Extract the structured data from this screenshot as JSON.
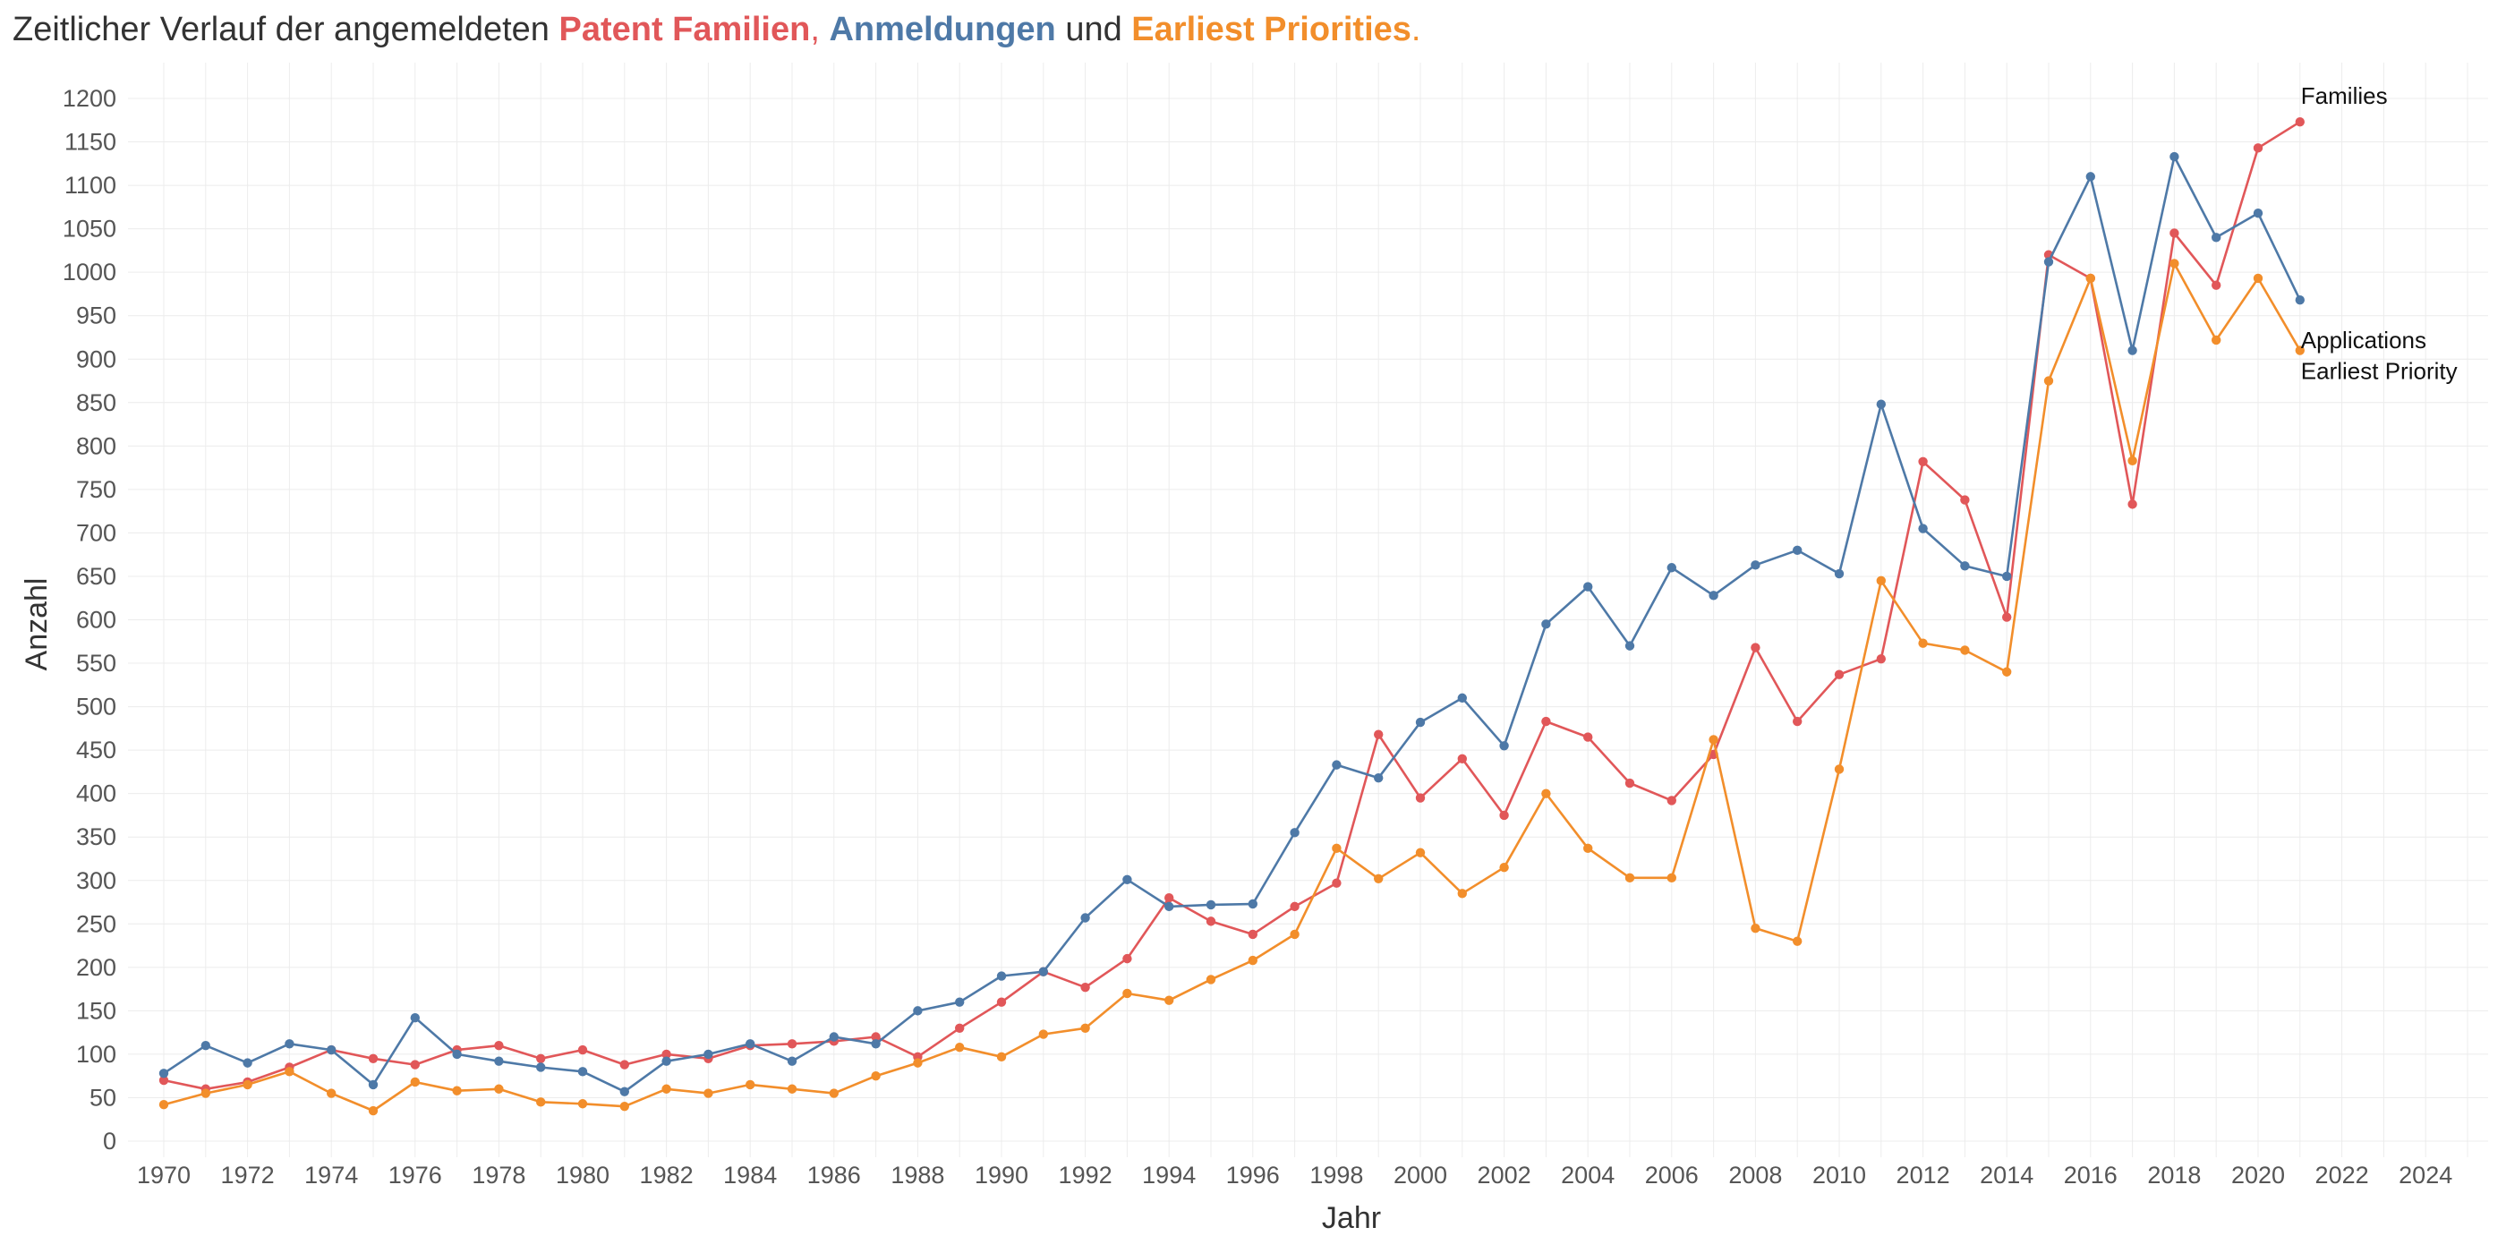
{
  "title": {
    "prefix": "Zeitlicher Verlauf der angemeldeten ",
    "families": "Patent Familien",
    "comma": ",",
    "applications": "Anmeldungen",
    "and": " und ",
    "priorities": "Earliest Priorities",
    "suffix": "."
  },
  "colors": {
    "families": "#e15759",
    "applications": "#4e79a7",
    "priorities": "#f28e2b",
    "text": "#333333",
    "grid": "#ececec"
  },
  "chart_data": {
    "type": "line",
    "xlabel": "Jahr",
    "ylabel": "Anzahl",
    "xlim": [
      1970,
      2025
    ],
    "ylim": [
      0,
      1200
    ],
    "x_ticks": [
      "1970",
      "1972",
      "1974",
      "1976",
      "1978",
      "1980",
      "1982",
      "1984",
      "1986",
      "1988",
      "1990",
      "1992",
      "1994",
      "1996",
      "1998",
      "2000",
      "2002",
      "2004",
      "2006",
      "2008",
      "2010",
      "2012",
      "2014",
      "2016",
      "2018",
      "2020",
      "2022",
      "2024"
    ],
    "y_ticks": [
      "0",
      "50",
      "100",
      "150",
      "200",
      "250",
      "300",
      "350",
      "400",
      "450",
      "500",
      "550",
      "600",
      "650",
      "700",
      "750",
      "800",
      "850",
      "900",
      "950",
      "1000",
      "1050",
      "1100",
      "1150",
      "1200"
    ],
    "grid": true,
    "x": [
      1970,
      1971,
      1972,
      1973,
      1974,
      1975,
      1976,
      1977,
      1978,
      1979,
      1980,
      1981,
      1982,
      1983,
      1984,
      1985,
      1986,
      1987,
      1988,
      1989,
      1990,
      1991,
      1992,
      1993,
      1994,
      1995,
      1996,
      1997,
      1998,
      1999,
      2000,
      2001,
      2002,
      2003,
      2004,
      2005,
      2006,
      2007,
      2008,
      2009,
      2010,
      2011,
      2012,
      2013,
      2014,
      2015,
      2016,
      2017,
      2018,
      2019,
      2020,
      2021
    ],
    "series": [
      {
        "name": "Families",
        "color": "#e15759",
        "values": [
          70,
          60,
          68,
          85,
          105,
          95,
          88,
          105,
          110,
          95,
          105,
          88,
          100,
          95,
          110,
          112,
          115,
          120,
          97,
          130,
          160,
          195,
          177,
          210,
          280,
          253,
          238,
          270,
          297,
          468,
          395,
          440,
          375,
          483,
          465,
          412,
          392,
          445,
          568,
          483,
          537,
          555,
          782,
          738,
          603,
          1020,
          993,
          733,
          1045,
          985,
          1143,
          1173
        ]
      },
      {
        "name": "Applications",
        "color": "#4e79a7",
        "values": [
          78,
          110,
          90,
          112,
          105,
          65,
          142,
          100,
          92,
          85,
          80,
          57,
          92,
          100,
          112,
          92,
          120,
          112,
          150,
          160,
          190,
          195,
          257,
          301,
          270,
          272,
          273,
          355,
          433,
          418,
          482,
          510,
          455,
          595,
          638,
          570,
          660,
          628,
          663,
          680,
          653,
          848,
          705,
          662,
          650,
          1012,
          1110,
          910,
          1133,
          1040,
          1068,
          968
        ]
      },
      {
        "name": "Earliest Priority",
        "color": "#f28e2b",
        "values": [
          42,
          55,
          65,
          80,
          55,
          35,
          68,
          58,
          60,
          45,
          43,
          40,
          60,
          55,
          65,
          60,
          55,
          75,
          90,
          108,
          97,
          123,
          130,
          170,
          162,
          186,
          208,
          238,
          337,
          302,
          332,
          285,
          315,
          400,
          337,
          303,
          303,
          462,
          245,
          230,
          428,
          645,
          573,
          565,
          540,
          875,
          993,
          783,
          1010,
          922,
          993,
          910
        ]
      }
    ],
    "series_end_labels": [
      "Families",
      "Applications",
      "Earliest Priority"
    ]
  }
}
